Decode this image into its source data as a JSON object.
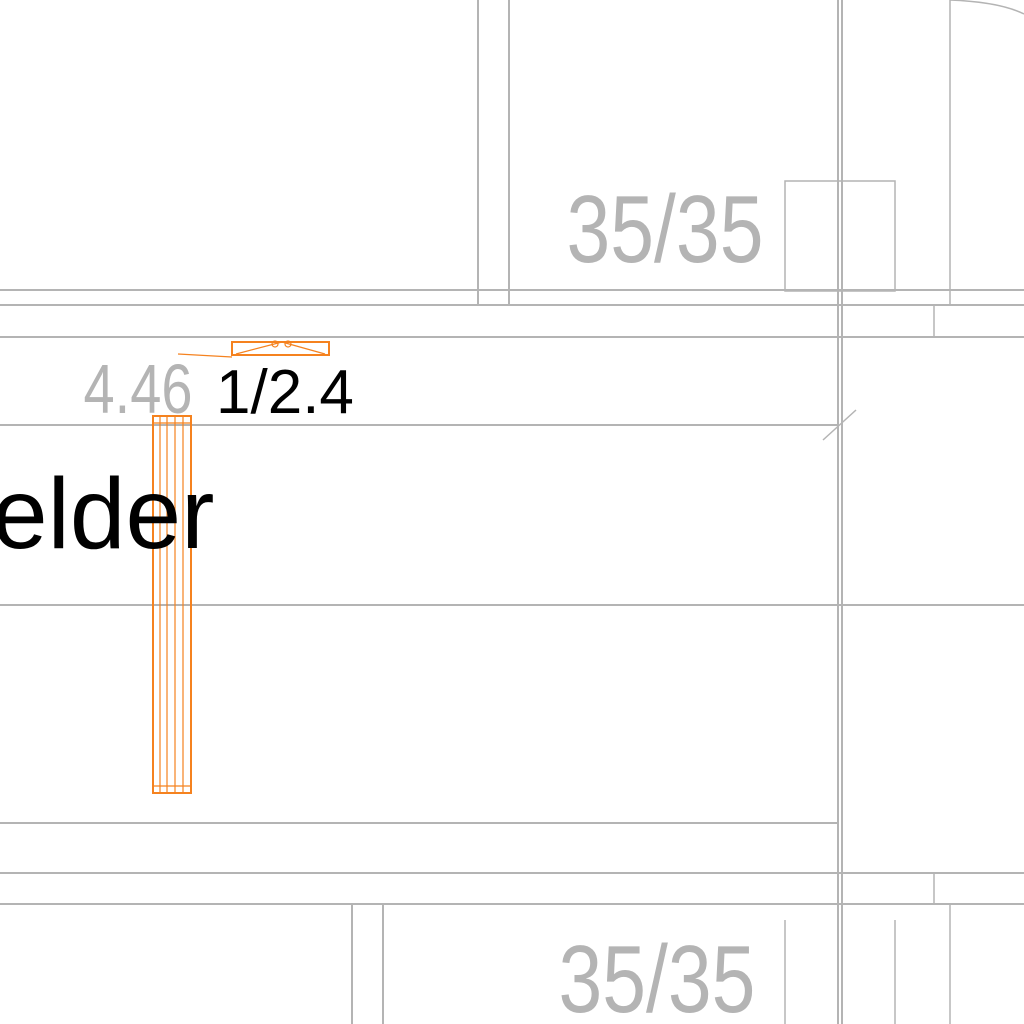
{
  "drawing": {
    "column_label_top": "35/35",
    "column_label_bottom": "35/35",
    "elevation_label": "4.46",
    "ratio_label": "1/2.4",
    "room_name_fragment": "elder"
  },
  "colors": {
    "wall_line": "#b4b4b4",
    "annotation_text": "#b4b4b4",
    "accent_orange": "#f5821f",
    "label_text": "#000000",
    "background": "#ffffff"
  }
}
